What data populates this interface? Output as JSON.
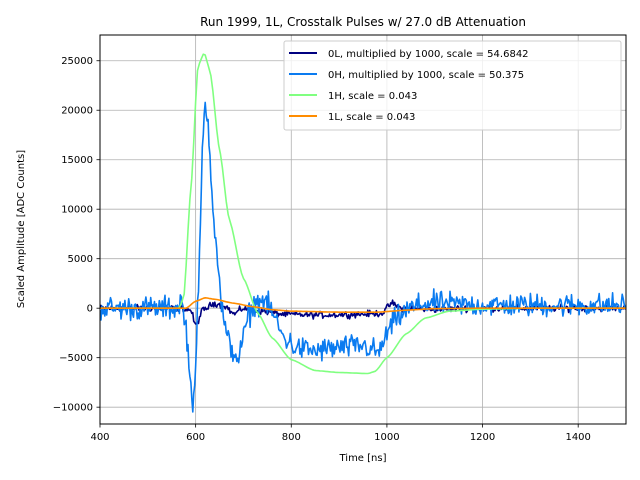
{
  "chart_data": {
    "type": "line",
    "title": "Run 1999, 1L, Crosstalk Pulses w/ 27.0 dB Attenuation",
    "xlabel": "Time [ns]",
    "ylabel": "Scaled Amplitude [ADC Counts]",
    "xlim": [
      400,
      1500
    ],
    "ylim": [
      -11700,
      27600
    ],
    "xticks": [
      400,
      600,
      800,
      1000,
      1200,
      1400
    ],
    "yticks": [
      -10000,
      -5000,
      0,
      5000,
      10000,
      15000,
      20000,
      25000
    ],
    "xtick_labels": [
      "400",
      "600",
      "800",
      "1000",
      "1200",
      "1400"
    ],
    "ytick_labels": [
      "−10000",
      "−5000",
      "0",
      "5000",
      "10000",
      "15000",
      "20000",
      "25000"
    ],
    "grid": true,
    "legend_position": "top-right",
    "series": [
      {
        "name": "0L, multiplied by 1000,  scale = 54.6842",
        "color": "#000080",
        "noise": 250,
        "keypoints": [
          [
            400,
            0
          ],
          [
            570,
            0
          ],
          [
            590,
            -200
          ],
          [
            600,
            -1800
          ],
          [
            615,
            -200
          ],
          [
            640,
            500
          ],
          [
            660,
            300
          ],
          [
            680,
            -600
          ],
          [
            700,
            0
          ],
          [
            740,
            -300
          ],
          [
            780,
            -600
          ],
          [
            850,
            -700
          ],
          [
            950,
            -600
          ],
          [
            990,
            -500
          ],
          [
            1010,
            500
          ],
          [
            1030,
            0
          ],
          [
            1100,
            -100
          ],
          [
            1200,
            0
          ],
          [
            1500,
            0
          ]
        ]
      },
      {
        "name": "0H, multiplied by 1000,  scale = 50.375",
        "color": "#0a7bf0",
        "noise": 900,
        "keypoints": [
          [
            400,
            0
          ],
          [
            560,
            0
          ],
          [
            570,
            800
          ],
          [
            580,
            -2000
          ],
          [
            590,
            -8000
          ],
          [
            595,
            -9500
          ],
          [
            600,
            -6000
          ],
          [
            608,
            5000
          ],
          [
            615,
            17000
          ],
          [
            620,
            20500
          ],
          [
            625,
            19000
          ],
          [
            640,
            8000
          ],
          [
            655,
            0
          ],
          [
            665,
            -3000
          ],
          [
            680,
            -4500
          ],
          [
            690,
            -5000
          ],
          [
            700,
            -3000
          ],
          [
            710,
            -800
          ],
          [
            725,
            500
          ],
          [
            745,
            800
          ],
          [
            760,
            -500
          ],
          [
            785,
            -3000
          ],
          [
            810,
            -4000
          ],
          [
            850,
            -4300
          ],
          [
            900,
            -4000
          ],
          [
            950,
            -3800
          ],
          [
            985,
            -4500
          ],
          [
            995,
            -3000
          ],
          [
            1020,
            -1000
          ],
          [
            1050,
            0
          ],
          [
            1080,
            500
          ],
          [
            1200,
            300
          ],
          [
            1500,
            300
          ]
        ]
      },
      {
        "name": "1H,  scale = 0.043",
        "color": "#80ff80",
        "noise": 0,
        "keypoints": [
          [
            400,
            0
          ],
          [
            565,
            0
          ],
          [
            575,
            1000
          ],
          [
            590,
            12000
          ],
          [
            605,
            24500
          ],
          [
            618,
            25800
          ],
          [
            630,
            24000
          ],
          [
            650,
            16000
          ],
          [
            670,
            9000
          ],
          [
            700,
            3000
          ],
          [
            730,
            -500
          ],
          [
            760,
            -3000
          ],
          [
            800,
            -5200
          ],
          [
            850,
            -6300
          ],
          [
            900,
            -6500
          ],
          [
            960,
            -6600
          ],
          [
            975,
            -6400
          ],
          [
            1000,
            -5000
          ],
          [
            1040,
            -2600
          ],
          [
            1080,
            -1000
          ],
          [
            1130,
            -300
          ],
          [
            1200,
            -100
          ],
          [
            1300,
            0
          ],
          [
            1500,
            0
          ]
        ]
      },
      {
        "name": "1L,  scale = 0.043",
        "color": "#ff8c00",
        "noise": 0,
        "keypoints": [
          [
            400,
            0
          ],
          [
            580,
            0
          ],
          [
            600,
            700
          ],
          [
            620,
            1050
          ],
          [
            640,
            900
          ],
          [
            680,
            500
          ],
          [
            720,
            150
          ],
          [
            760,
            -150
          ],
          [
            800,
            -300
          ],
          [
            900,
            -400
          ],
          [
            980,
            -400
          ],
          [
            1040,
            -200
          ],
          [
            1100,
            -50
          ],
          [
            1200,
            0
          ],
          [
            1500,
            0
          ]
        ]
      }
    ]
  }
}
